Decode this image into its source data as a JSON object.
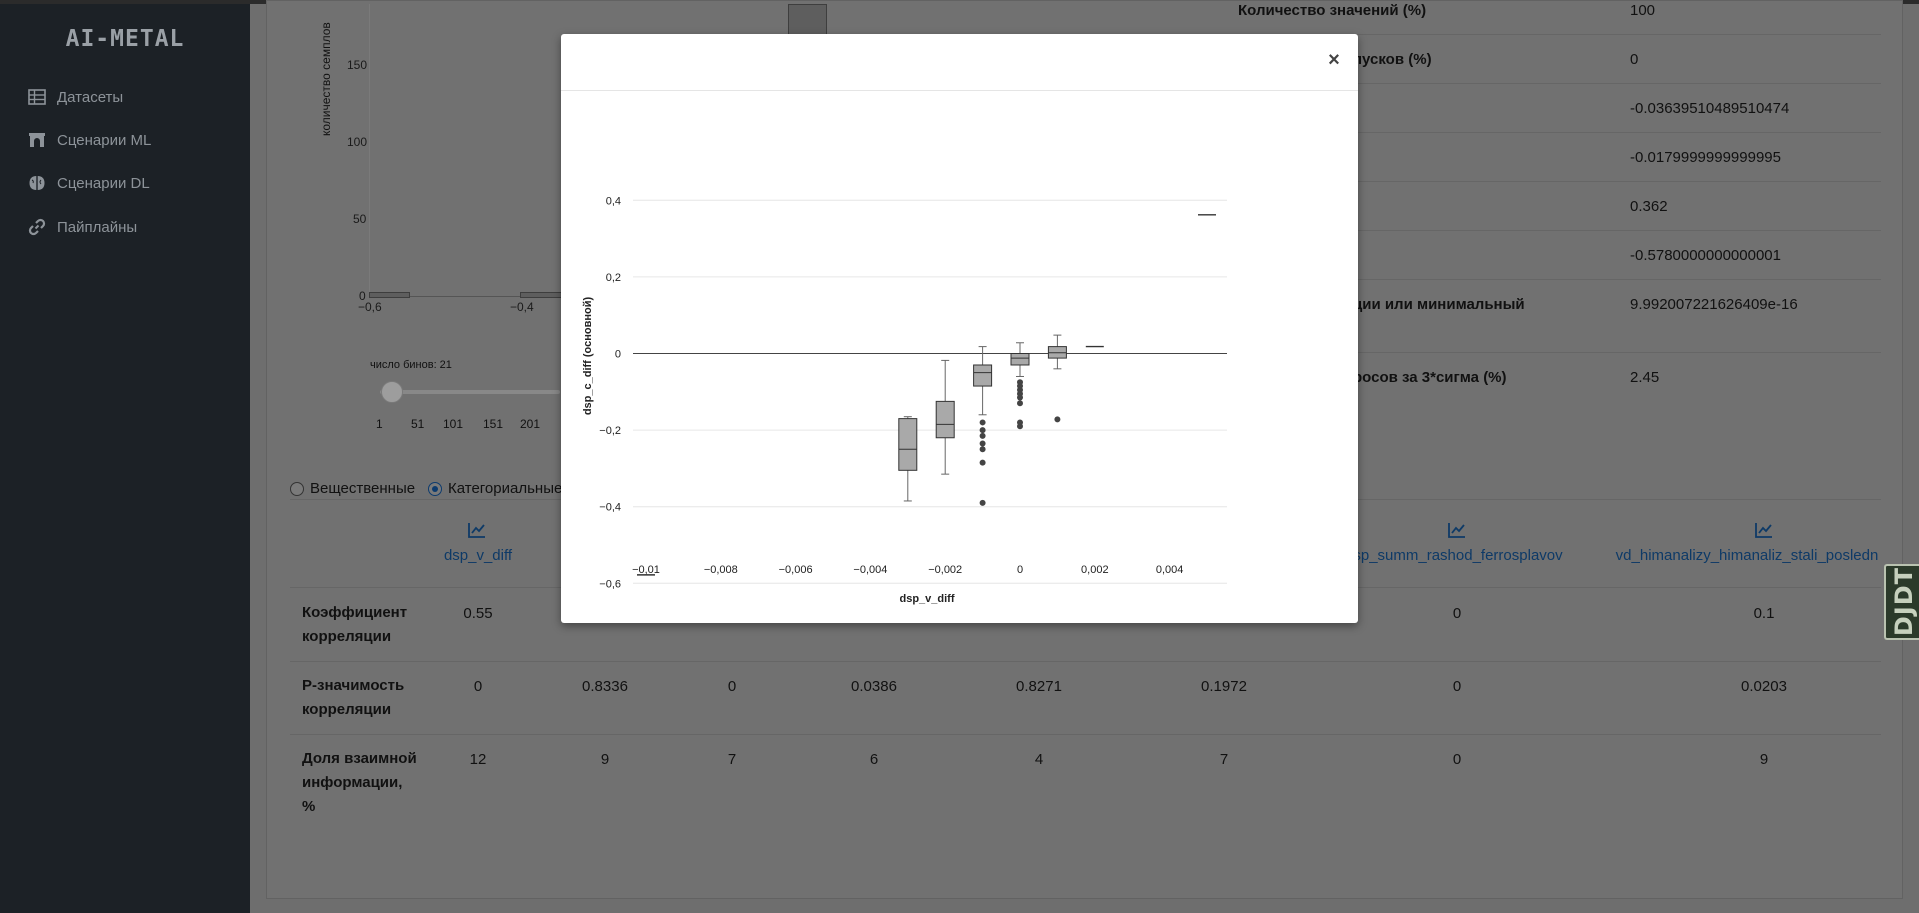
{
  "app": {
    "logo": "AI-METAL"
  },
  "sidebar": {
    "items": [
      {
        "label": "Датасеты",
        "icon": "table-icon"
      },
      {
        "label": "Сценарии ML",
        "icon": "archway-icon"
      },
      {
        "label": "Сценарии DL",
        "icon": "brain-icon"
      },
      {
        "label": "Пайплайны",
        "icon": "link-icon"
      }
    ]
  },
  "histogram": {
    "ylabel": "количество семплов",
    "yticks": [
      "150",
      "100",
      "50",
      "0"
    ],
    "xticks": [
      "−0,6",
      "−0,4"
    ],
    "bins_label": "число бинов: 21",
    "slider_ticks": [
      "1",
      "51",
      "101",
      "151",
      "201"
    ],
    "bins_value": 21
  },
  "stats": [
    {
      "label": "Количество значений (%)",
      "value": "100"
    },
    {
      "label": "пусков (%)",
      "value": "0"
    },
    {
      "label": "",
      "value": "-0.03639510489510474"
    },
    {
      "label": "",
      "value": "-0.0179999999999995"
    },
    {
      "label": "",
      "value": "0.362"
    },
    {
      "label": "",
      "value": "-0.5780000000000001"
    },
    {
      "label": "ции или минимальный",
      "value": "9.992007221626409e-16"
    },
    {
      "label": "росов за 3*сигма (%)",
      "value": "2.45"
    }
  ],
  "filters": {
    "options": [
      {
        "label": "Вещественные",
        "selected": false
      },
      {
        "label": "Категориальные",
        "selected": true
      }
    ]
  },
  "correlation_table": {
    "columns": [
      "dsp_v_diff",
      "",
      "",
      "",
      "",
      "",
      "sp_summ_rashod_ferrosplavov",
      "vd_himanalizy_himanaliz_stali_posledn"
    ],
    "rows": [
      {
        "label": "Коэффициент корреляции",
        "values": [
          "0.55",
          "",
          "",
          "",
          "",
          "",
          "0",
          "0.1"
        ]
      },
      {
        "label": "P-значимость корреляции",
        "values": [
          "0",
          "0.8336",
          "0",
          "0.0386",
          "0.8271",
          "0.1972",
          "0",
          "0.0203"
        ]
      },
      {
        "label": "Доля взаимной информации, %",
        "values": [
          "12",
          "9",
          "7",
          "6",
          "4",
          "7",
          "0",
          "9"
        ]
      }
    ]
  },
  "debug_toolbar": {
    "label": "DJDT"
  },
  "modal": {
    "close_label": "×",
    "chart_data": {
      "type": "box",
      "xlabel": "dsp_v_diff",
      "ylabel": "dsp_c_diff (основной)",
      "xlim": [
        -0.0103,
        0.0055
      ],
      "ylim": [
        -0.62,
        0.45
      ],
      "xticks": [
        -0.01,
        -0.008,
        -0.006,
        -0.004,
        -0.002,
        0,
        0.002,
        0.004
      ],
      "xtick_labels": [
        "−0,01",
        "−0,008",
        "−0,006",
        "−0,004",
        "−0,002",
        "0",
        "0,002",
        "0,004"
      ],
      "yticks": [
        0.4,
        0.2,
        0,
        -0.2,
        -0.4,
        -0.6
      ],
      "ytick_labels": [
        "0,4",
        "0,2",
        "0",
        "−0,2",
        "−0,4",
        "−0,6"
      ],
      "box_color": "#a9a9a9",
      "boxes": [
        {
          "x": -0.01,
          "min": -0.578,
          "q1": -0.578,
          "median": -0.578,
          "q3": -0.578,
          "max": -0.578,
          "outliers": []
        },
        {
          "x": -0.003,
          "min": -0.385,
          "q1": -0.305,
          "median": -0.25,
          "q3": -0.17,
          "max": -0.165,
          "outliers": []
        },
        {
          "x": -0.002,
          "min": -0.315,
          "q1": -0.22,
          "median": -0.185,
          "q3": -0.125,
          "max": -0.018,
          "outliers": []
        },
        {
          "x": -0.001,
          "min": -0.16,
          "q1": -0.085,
          "median": -0.05,
          "q3": -0.03,
          "max": 0.018,
          "outliers": [
            -0.18,
            -0.2,
            -0.215,
            -0.235,
            -0.25,
            -0.285,
            -0.39
          ]
        },
        {
          "x": 0,
          "min": -0.06,
          "q1": -0.03,
          "median": -0.012,
          "q3": 0,
          "max": 0.028,
          "outliers": [
            -0.075,
            -0.085,
            -0.095,
            -0.105,
            -0.115,
            -0.13,
            -0.18,
            -0.19
          ]
        },
        {
          "x": 0.001,
          "min": -0.04,
          "q1": -0.012,
          "median": 0.002,
          "q3": 0.018,
          "max": 0.048,
          "outliers": [
            -0.172
          ]
        },
        {
          "x": 0.002,
          "min": 0.018,
          "q1": 0.018,
          "median": 0.018,
          "q3": 0.018,
          "max": 0.018,
          "outliers": []
        },
        {
          "x": 0.005,
          "min": 0.362,
          "q1": 0.362,
          "median": 0.362,
          "q3": 0.362,
          "max": 0.362,
          "outliers": []
        }
      ]
    }
  }
}
